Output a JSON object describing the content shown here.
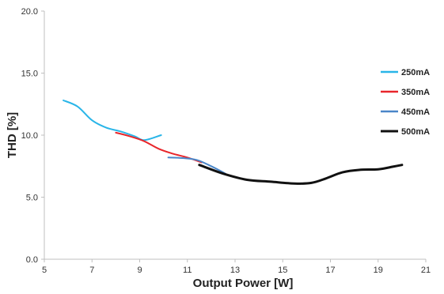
{
  "chart_data": {
    "type": "line",
    "xlabel": "Output Power [W]",
    "ylabel": "THD [%]",
    "xlim": [
      5,
      21
    ],
    "ylim": [
      0,
      20
    ],
    "x_ticks": [
      5,
      7,
      9,
      11,
      13,
      15,
      17,
      19,
      21
    ],
    "x_tick_labels": [
      "5",
      "7",
      "9",
      "11",
      "13",
      "15",
      "17",
      "19",
      "21"
    ],
    "y_ticks": [
      0,
      5,
      10,
      15,
      20
    ],
    "y_tick_labels": [
      "0.0",
      "5.0",
      "10.0",
      "15.0",
      "20.0"
    ],
    "grid": false,
    "legend_position": "right",
    "series": [
      {
        "name": "250mA",
        "color": "#29B5E8",
        "x": [
          5.8,
          6.4,
          7.0,
          7.6,
          8.2,
          8.8,
          9.2,
          9.9
        ],
        "y": [
          12.8,
          12.3,
          11.2,
          10.6,
          10.3,
          9.9,
          9.6,
          10.0
        ]
      },
      {
        "name": "350mA",
        "color": "#E8262B",
        "x": [
          8.0,
          8.6,
          9.2,
          9.8,
          10.4,
          11.0,
          11.6
        ],
        "y": [
          10.2,
          9.9,
          9.5,
          8.9,
          8.5,
          8.2,
          7.8
        ]
      },
      {
        "name": "450mA",
        "color": "#4A86C8",
        "x": [
          10.2,
          10.8,
          11.4,
          12.0,
          12.6
        ],
        "y": [
          8.2,
          8.15,
          8.0,
          7.5,
          6.9
        ]
      },
      {
        "name": "500mA",
        "color": "#111111",
        "x": [
          11.5,
          12.5,
          13.5,
          14.5,
          15.5,
          16.2,
          16.8,
          17.5,
          18.2,
          19.0,
          19.6,
          20.0
        ],
        "y": [
          7.6,
          6.9,
          6.4,
          6.25,
          6.1,
          6.15,
          6.5,
          7.0,
          7.2,
          7.25,
          7.45,
          7.6
        ]
      }
    ]
  }
}
